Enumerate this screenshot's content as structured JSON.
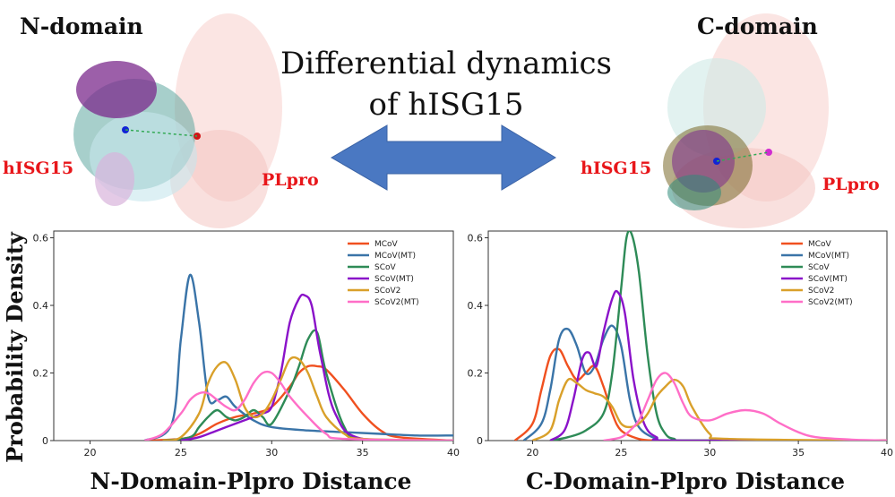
{
  "header": {
    "title_line1": "Differential dynamics",
    "title_line2": "of hISG15",
    "left_domain": "N-domain",
    "right_domain": "C-domain",
    "left_hisg_label": "hISG15",
    "left_plpro_label": "PLpro",
    "right_hisg_label": "hISG15",
    "right_plpro_label": "PLpro",
    "shared_ylabel": "Probability Density"
  },
  "colors": {
    "MCoV": "#f0501f",
    "MCoV(MT)": "#3a74a8",
    "SCoV": "#2e8b57",
    "SCoV(MT)": "#8a12c9",
    "SCoV2": "#d9a02a",
    "SCoV2(MT)": "#ff6ec7",
    "arrow": "#4a78c2",
    "labels": "#e8161a"
  },
  "chart_data": [
    {
      "type": "line",
      "xlabel": "N-Domain-Plpro Distance",
      "ylabel": "Probability Density",
      "xlim": [
        18,
        40
      ],
      "ylim": [
        0,
        0.62
      ],
      "xticks": [
        20,
        25,
        30,
        35,
        40
      ],
      "yticks": [
        0,
        0.2,
        0.4,
        0.6
      ],
      "ytick_labels": [
        "0",
        "0.2",
        "0.4",
        "0.6"
      ],
      "legend": "top-right",
      "series": [
        {
          "name": "MCoV",
          "x": [
            23,
            25,
            26,
            27,
            28,
            29,
            30,
            31,
            31.5,
            32,
            32.5,
            33,
            34,
            35,
            36,
            37,
            40
          ],
          "y": [
            0,
            0.005,
            0.02,
            0.05,
            0.07,
            0.08,
            0.1,
            0.16,
            0.2,
            0.22,
            0.22,
            0.21,
            0.15,
            0.08,
            0.03,
            0.01,
            0
          ]
        },
        {
          "name": "MCoV(MT)",
          "x": [
            23,
            24.5,
            25,
            25.5,
            26,
            26.5,
            27,
            27.5,
            28,
            29,
            30,
            32,
            34,
            36,
            38,
            40
          ],
          "y": [
            0,
            0.05,
            0.3,
            0.49,
            0.35,
            0.13,
            0.12,
            0.13,
            0.1,
            0.06,
            0.04,
            0.03,
            0.025,
            0.02,
            0.015,
            0.015
          ]
        },
        {
          "name": "SCoV",
          "x": [
            24,
            25.5,
            26,
            26.5,
            27,
            27.5,
            28,
            28.5,
            29,
            29.5,
            30,
            31,
            31.5,
            32,
            32.5,
            33,
            34,
            35,
            40
          ],
          "y": [
            0,
            0.01,
            0.04,
            0.07,
            0.09,
            0.07,
            0.06,
            0.07,
            0.09,
            0.07,
            0.05,
            0.15,
            0.22,
            0.3,
            0.32,
            0.2,
            0.04,
            0.005,
            0
          ]
        },
        {
          "name": "SCoV(MT)",
          "x": [
            25,
            26,
            27,
            28,
            29,
            29.5,
            30,
            30.5,
            31,
            31.5,
            31.8,
            32.2,
            32.7,
            33.5,
            35,
            40
          ],
          "y": [
            0,
            0.01,
            0.03,
            0.05,
            0.07,
            0.08,
            0.1,
            0.2,
            0.35,
            0.42,
            0.43,
            0.4,
            0.25,
            0.08,
            0.005,
            0
          ]
        },
        {
          "name": "SCoV2",
          "x": [
            24,
            25,
            26,
            26.5,
            27,
            27.5,
            28,
            28.5,
            29,
            29.5,
            30,
            30.5,
            31,
            31.5,
            32,
            32.5,
            33,
            34,
            35,
            40
          ],
          "y": [
            0,
            0.01,
            0.08,
            0.17,
            0.22,
            0.23,
            0.18,
            0.1,
            0.07,
            0.08,
            0.12,
            0.18,
            0.24,
            0.24,
            0.2,
            0.13,
            0.07,
            0.02,
            0.005,
            0
          ]
        },
        {
          "name": "SCoV2(MT)",
          "x": [
            23,
            24,
            25,
            25.5,
            26,
            26.5,
            27,
            27.5,
            28,
            28.5,
            29,
            29.5,
            30,
            30.5,
            31,
            32,
            33,
            34,
            40
          ],
          "y": [
            0,
            0.02,
            0.08,
            0.12,
            0.14,
            0.14,
            0.12,
            0.1,
            0.09,
            0.12,
            0.17,
            0.2,
            0.2,
            0.17,
            0.13,
            0.07,
            0.02,
            0.005,
            0
          ]
        }
      ]
    },
    {
      "type": "line",
      "xlabel": "C-Domain-Plpro Distance",
      "ylabel": "Probability Density",
      "xlim": [
        17.5,
        40
      ],
      "ylim": [
        0,
        0.62
      ],
      "xticks": [
        20,
        25,
        30,
        35,
        40
      ],
      "yticks": [
        0,
        0.2,
        0.4,
        0.6
      ],
      "ytick_labels": [
        "0",
        "0.2",
        "0.4",
        "0.6"
      ],
      "legend": "top-right",
      "series": [
        {
          "name": "MCoV",
          "x": [
            19,
            20,
            20.5,
            21,
            21.5,
            22,
            22.5,
            23,
            23.5,
            24,
            24.5,
            25,
            26,
            27,
            28,
            40
          ],
          "y": [
            0,
            0.05,
            0.15,
            0.25,
            0.27,
            0.22,
            0.18,
            0.2,
            0.22,
            0.16,
            0.08,
            0.03,
            0.005,
            0,
            0,
            0
          ]
        },
        {
          "name": "MCoV(MT)",
          "x": [
            19.5,
            20.5,
            21,
            21.5,
            22,
            22.5,
            23,
            23.5,
            24,
            24.5,
            25,
            25.5,
            26,
            27,
            28,
            40
          ],
          "y": [
            0,
            0.05,
            0.15,
            0.3,
            0.33,
            0.28,
            0.2,
            0.22,
            0.3,
            0.34,
            0.28,
            0.12,
            0.04,
            0.005,
            0,
            0
          ]
        },
        {
          "name": "SCoV",
          "x": [
            21,
            22,
            23,
            24,
            24.5,
            25,
            25.3,
            25.6,
            26,
            26.5,
            27,
            27.5,
            28,
            29,
            40
          ],
          "y": [
            0,
            0.01,
            0.03,
            0.08,
            0.2,
            0.45,
            0.6,
            0.61,
            0.5,
            0.25,
            0.08,
            0.02,
            0.005,
            0,
            0
          ]
        },
        {
          "name": "SCoV(MT)",
          "x": [
            21,
            21.8,
            22.3,
            22.8,
            23.2,
            23.6,
            24,
            24.5,
            24.8,
            25.2,
            25.7,
            26.3,
            27,
            28,
            40
          ],
          "y": [
            0,
            0.03,
            0.12,
            0.24,
            0.26,
            0.22,
            0.32,
            0.42,
            0.44,
            0.38,
            0.18,
            0.05,
            0.01,
            0,
            0
          ]
        },
        {
          "name": "SCoV2",
          "x": [
            20,
            21,
            21.5,
            22,
            22.5,
            23,
            23.5,
            24,
            24.5,
            25,
            25.5,
            26,
            26.5,
            27,
            27.5,
            28,
            28.5,
            29,
            30,
            31,
            40
          ],
          "y": [
            0,
            0.03,
            0.12,
            0.18,
            0.17,
            0.15,
            0.14,
            0.13,
            0.1,
            0.05,
            0.04,
            0.05,
            0.08,
            0.13,
            0.16,
            0.18,
            0.16,
            0.1,
            0.02,
            0.005,
            0
          ]
        },
        {
          "name": "SCoV2(MT)",
          "x": [
            24,
            25,
            25.5,
            26,
            26.5,
            27,
            27.5,
            28,
            28.5,
            29,
            30,
            31,
            32,
            33,
            34,
            35,
            36,
            38,
            40
          ],
          "y": [
            0,
            0.01,
            0.03,
            0.06,
            0.12,
            0.18,
            0.2,
            0.17,
            0.11,
            0.07,
            0.06,
            0.08,
            0.09,
            0.08,
            0.05,
            0.025,
            0.01,
            0.003,
            0
          ]
        }
      ]
    }
  ]
}
